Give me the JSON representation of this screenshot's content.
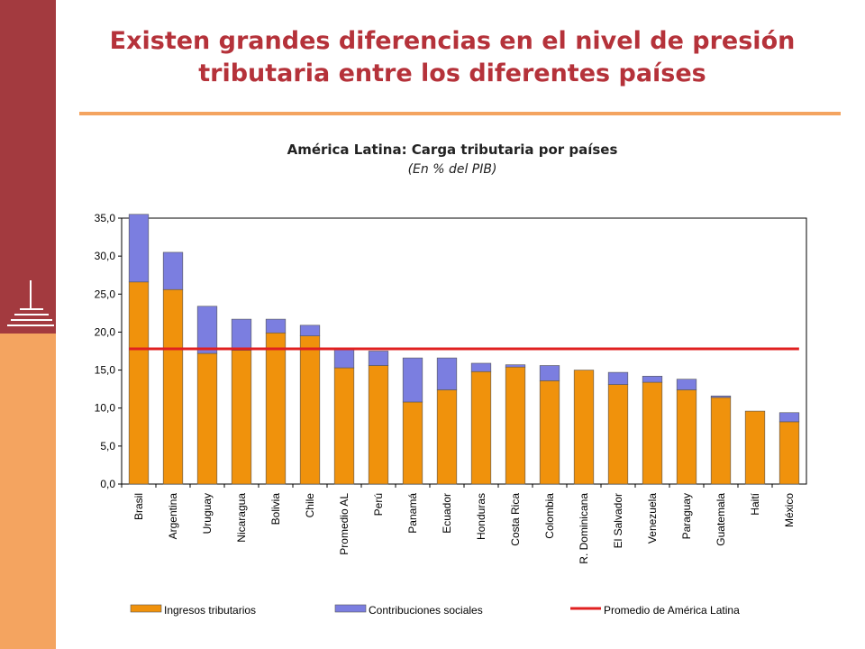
{
  "slide": {
    "title_line1": "Existen grandes diferencias en el nivel de presión",
    "title_line2": "tributaria entre los diferentes países"
  },
  "colors": {
    "left_band_top": "#a33a3f",
    "left_band_bottom": "#f4a460",
    "title": "#b5323a",
    "ingresos": "#f0920c",
    "contribuciones": "#7b7ee0",
    "promedio_line": "#e02020"
  },
  "chart_data": {
    "type": "bar",
    "stacked": true,
    "title": "América Latina: Carga tributaria por países",
    "subtitle": "(En % del PIB)",
    "categories": [
      "Brasil",
      "Argentina",
      "Uruguay",
      "Nicaragua",
      "Bolivia",
      "Chile",
      "Promedio AL",
      "Perú",
      "Panamá",
      "Ecuador",
      "Honduras",
      "Costa Rica",
      "Colombia",
      "R. Dominicana",
      "El Salvador",
      "Venezuela",
      "Paraguay",
      "Guatemala",
      "Haití",
      "México"
    ],
    "series": [
      {
        "name": "Ingresos tributarios",
        "color": "#f0920c",
        "values": [
          26.6,
          25.6,
          17.2,
          17.6,
          19.9,
          19.5,
          15.3,
          15.6,
          10.8,
          12.4,
          14.8,
          15.4,
          13.6,
          15.0,
          13.1,
          13.4,
          12.4,
          11.4,
          9.6,
          8.2
        ]
      },
      {
        "name": "Contribuciones sociales",
        "color": "#7b7ee0",
        "values": [
          8.9,
          4.9,
          6.2,
          4.1,
          1.8,
          1.4,
          2.5,
          1.9,
          5.8,
          4.2,
          1.1,
          0.3,
          2.0,
          0.0,
          1.6,
          0.8,
          1.4,
          0.2,
          0.0,
          1.2
        ]
      }
    ],
    "reference_line": {
      "name": "Promedio de América Latina",
      "value": 17.8,
      "color": "#e02020"
    },
    "yticks": [
      "0,0",
      "5,0",
      "10,0",
      "15,0",
      "20,0",
      "25,0",
      "30,0",
      "35,0"
    ],
    "ylim": [
      0,
      35
    ],
    "grid": false,
    "legend_position": "bottom"
  }
}
